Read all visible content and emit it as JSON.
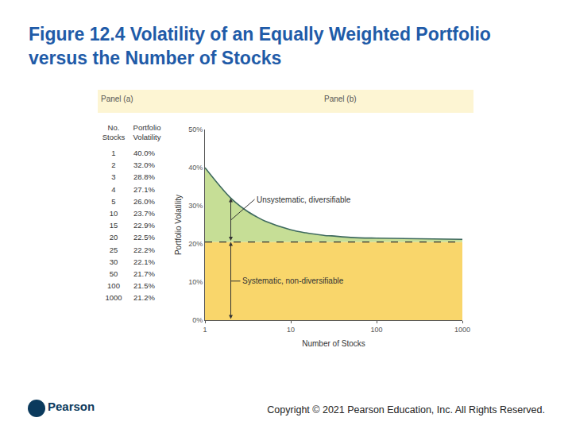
{
  "slide_title": "Figure 12.4 Volatility of an Equally Weighted Portfolio versus the Number of Stocks",
  "panel_labels": [
    "Panel (a)",
    "Panel (b)"
  ],
  "panel_a": {
    "header": [
      [
        "No.",
        "Stocks"
      ],
      [
        "Portfolio",
        "Volatility"
      ]
    ],
    "rows": [
      [
        "1",
        "40.0%"
      ],
      [
        "2",
        "32.0%"
      ],
      [
        "3",
        "28.8%"
      ],
      [
        "4",
        "27.1%"
      ],
      [
        "5",
        "26.0%"
      ],
      [
        "10",
        "23.7%"
      ],
      [
        "15",
        "22.9%"
      ],
      [
        "20",
        "22.5%"
      ],
      [
        "25",
        "22.2%"
      ],
      [
        "30",
        "22.1%"
      ],
      [
        "50",
        "21.7%"
      ],
      [
        "100",
        "21.5%"
      ],
      [
        "1000",
        "21.2%"
      ]
    ]
  },
  "chart_data": {
    "type": "area",
    "xlabel": "Number of Stocks",
    "ylabel": "Portfolio Volatility",
    "x": [
      1,
      2,
      3,
      4,
      5,
      10,
      15,
      20,
      25,
      30,
      50,
      100,
      1000
    ],
    "values": [
      40.0,
      32.0,
      28.8,
      27.1,
      26.0,
      23.7,
      22.9,
      22.5,
      22.2,
      22.1,
      21.7,
      21.5,
      21.2
    ],
    "color": "#c6de96",
    "baseline": {
      "value": 20.5,
      "color": "#f9d66b",
      "line_style": "dashed"
    },
    "annotations": [
      "Unsystematic, diversifiable",
      "Systematic, non-diversifiable"
    ],
    "log": "x",
    "grid": false,
    "xlim": [
      1,
      1000
    ],
    "xticks": [
      1,
      10,
      100,
      1000
    ],
    "ylim": [
      0,
      50
    ],
    "yticks": [
      {
        "value": 0,
        "label": "0%"
      },
      {
        "value": 10,
        "label": "10%"
      },
      {
        "value": 20,
        "label": "20%"
      },
      {
        "value": 30,
        "label": "30%"
      },
      {
        "value": 40,
        "label": "40%"
      },
      {
        "value": 50,
        "label": "50%"
      }
    ]
  },
  "footer": {
    "logo": "Pearson",
    "copyright": "Copyright © 2021 Pearson Education, Inc. All Rights Reserved."
  }
}
